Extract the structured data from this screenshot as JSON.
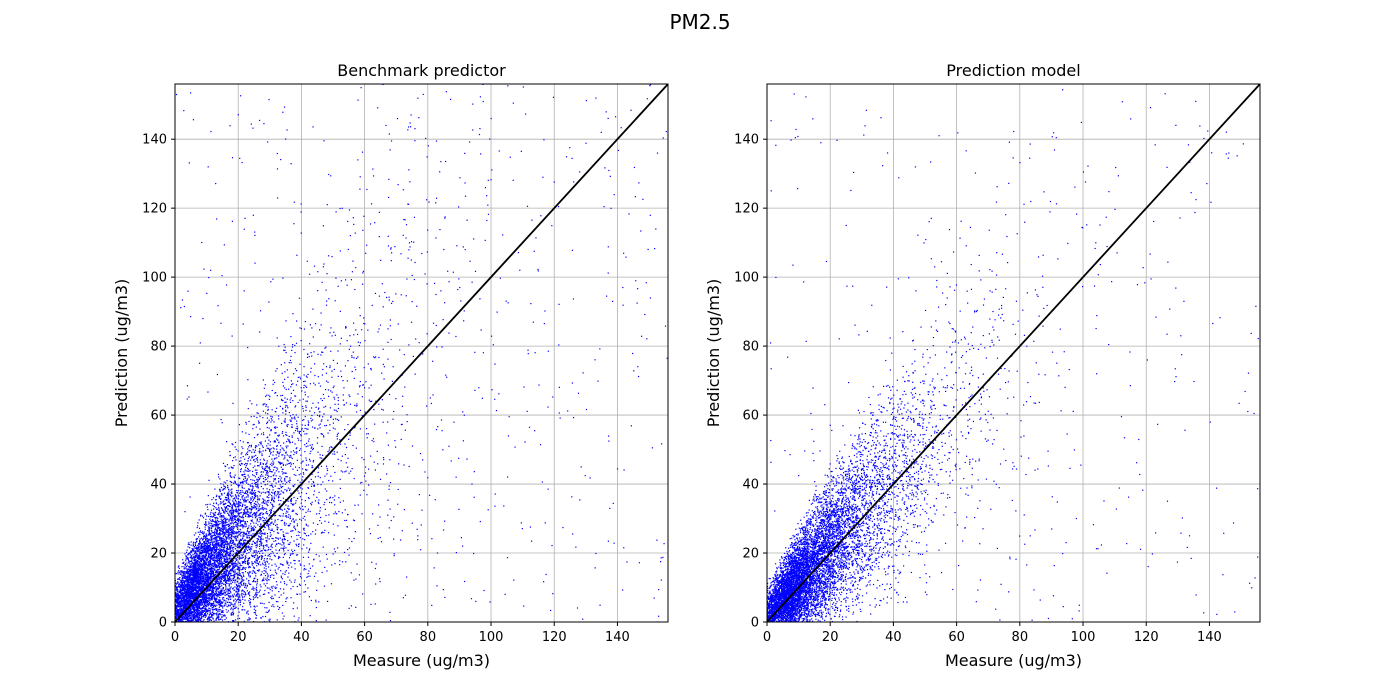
{
  "figure": {
    "suptitle": "PM2.5"
  },
  "chart_data": [
    {
      "type": "scatter",
      "title": "Benchmark predictor",
      "xlabel": "Measure  (ug/m3)",
      "ylabel": "Prediction  (ug/m3)",
      "xlim": [
        0,
        156
      ],
      "ylim": [
        0,
        156
      ],
      "xticks": [
        0,
        20,
        40,
        60,
        80,
        100,
        120,
        140
      ],
      "yticks": [
        0,
        20,
        40,
        60,
        80,
        100,
        120,
        140
      ],
      "grid": true,
      "marker_color": "#0000ff",
      "reference_line": {
        "x": [
          0,
          156
        ],
        "y": [
          0,
          156
        ],
        "color": "#000000"
      },
      "distribution": {
        "points": 9000,
        "spread": 0.42,
        "offset": 3,
        "outlier_rate": 0.06,
        "mass_center": 10,
        "mass_scale": 16,
        "seed": 11
      }
    },
    {
      "type": "scatter",
      "title": "Prediction model",
      "xlabel": "Measure  (ug/m3)",
      "ylabel": "Prediction  (ug/m3)",
      "xlim": [
        0,
        156
      ],
      "ylim": [
        0,
        156
      ],
      "xticks": [
        0,
        20,
        40,
        60,
        80,
        100,
        120,
        140
      ],
      "yticks": [
        0,
        20,
        40,
        60,
        80,
        100,
        120,
        140
      ],
      "grid": true,
      "marker_color": "#0000ff",
      "reference_line": {
        "x": [
          0,
          156
        ],
        "y": [
          0,
          156
        ],
        "color": "#000000"
      },
      "distribution": {
        "points": 9000,
        "spread": 0.28,
        "offset": 1,
        "outlier_rate": 0.035,
        "mass_center": 12,
        "mass_scale": 16,
        "seed": 29
      }
    }
  ]
}
